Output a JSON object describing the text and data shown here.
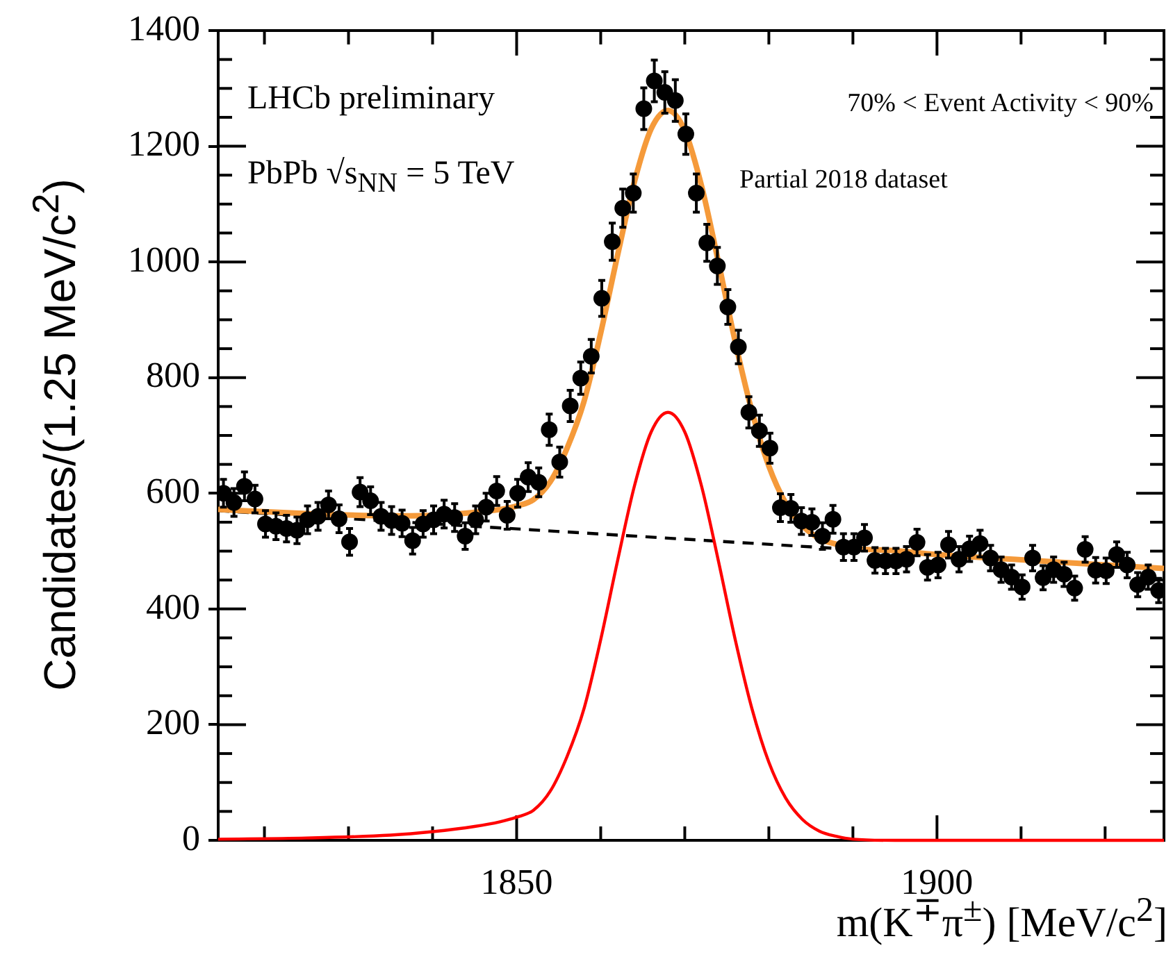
{
  "chart_data": {
    "type": "scatter",
    "xlabel": "m(K$^{∓}$π$^{±}$) [MeV/c$^{2}$]",
    "ylabel": "Candidates/(1.25 MeV/c$^{2}$)",
    "annotations": [
      "LHCb preliminary",
      "PbPb √s$_{NN}$ = 5 TeV",
      "70% < Event Activity < 90%",
      "Partial 2018 dataset"
    ],
    "xlim": [
      1814.5,
      1927
    ],
    "xticks": [
      {
        "value": 1820,
        "label": null
      },
      {
        "value": 1830,
        "label": null
      },
      {
        "value": 1840,
        "label": null
      },
      1850,
      {
        "value": 1860,
        "label": null
      },
      {
        "value": 1870,
        "label": null
      },
      {
        "value": 1880,
        "label": null
      },
      {
        "value": 1890,
        "label": null
      },
      1900,
      {
        "value": 1910,
        "label": null
      },
      {
        "value": 1920,
        "label": null
      }
    ],
    "ylim": [
      0,
      1400
    ],
    "yticks": [
      0,
      {
        "value": 50,
        "label": null
      },
      {
        "value": 100,
        "label": null
      },
      {
        "value": 150,
        "label": null
      },
      200,
      {
        "value": 250,
        "label": null
      },
      {
        "value": 300,
        "label": null
      },
      {
        "value": 350,
        "label": null
      },
      400,
      {
        "value": 450,
        "label": null
      },
      {
        "value": 500,
        "label": null
      },
      {
        "value": 550,
        "label": null
      },
      600,
      {
        "value": 650,
        "label": null
      },
      {
        "value": 700,
        "label": null
      },
      {
        "value": 750,
        "label": null
      },
      800,
      {
        "value": 850,
        "label": null
      },
      {
        "value": 900,
        "label": null
      },
      {
        "value": 950,
        "label": null
      },
      1000,
      {
        "value": 1050,
        "label": null
      },
      {
        "value": 1100,
        "label": null
      },
      {
        "value": 1150,
        "label": null
      },
      1200,
      {
        "value": 1250,
        "label": null
      },
      {
        "value": 1300,
        "label": null
      },
      {
        "value": 1350,
        "label": null
      },
      1400
    ],
    "series": [
      {
        "type": "line",
        "color": "#000000",
        "line_style": "dashed",
        "marker": "none",
        "x": [
          1814.5,
          1927
        ],
        "values": [
          570,
          470
        ]
      },
      {
        "type": "line",
        "color": "#ff0000",
        "line_style": "solid",
        "marker": "none",
        "x": [
          1814.5,
          1825,
          1835,
          1840,
          1845,
          1848,
          1850,
          1852,
          1854,
          1856,
          1858,
          1860,
          1862,
          1864,
          1866,
          1868,
          1870,
          1872,
          1874,
          1876,
          1878,
          1880,
          1882,
          1884,
          1886,
          1888,
          1890,
          1895,
          1927
        ],
        "values": [
          2,
          4,
          9,
          15,
          24,
          32,
          40,
          52,
          85,
          145,
          227,
          347,
          483,
          612,
          706,
          740,
          706,
          612,
          483,
          347,
          227,
          135,
          73,
          36,
          16,
          7,
          2,
          0,
          0
        ]
      },
      {
        "type": "line",
        "color": "#f59a3a",
        "line_style": "solid",
        "marker": "none",
        "x": [
          1814.5,
          1825,
          1835,
          1840,
          1845,
          1848,
          1850,
          1852,
          1854,
          1856,
          1858,
          1860,
          1862,
          1864,
          1866,
          1868,
          1870,
          1872,
          1874,
          1876,
          1878,
          1880,
          1882,
          1884,
          1886,
          1888,
          1890,
          1895,
          1900,
          1910,
          1927
        ],
        "values": [
          572,
          565,
          561,
          562,
          567,
          572,
          578,
          589,
          620,
          678,
          758,
          877,
          1011,
          1138,
          1230,
          1262,
          1227,
          1131,
          1000,
          862,
          741,
          647,
          583,
          544,
          522,
          512,
          505,
          501,
          494,
          485,
          470
        ]
      },
      {
        "type": "scatter",
        "color": "#000000",
        "marker": "circle",
        "x": [
          1815.125,
          1816.375,
          1817.625,
          1818.875,
          1820.125,
          1821.375,
          1822.625,
          1823.875,
          1825.125,
          1826.375,
          1827.625,
          1828.875,
          1830.125,
          1831.375,
          1832.625,
          1833.875,
          1835.125,
          1836.375,
          1837.625,
          1838.875,
          1840.125,
          1841.375,
          1842.625,
          1843.875,
          1845.125,
          1846.375,
          1847.625,
          1848.875,
          1850.125,
          1851.375,
          1852.625,
          1853.875,
          1855.125,
          1856.375,
          1857.625,
          1858.875,
          1860.125,
          1861.375,
          1862.625,
          1863.875,
          1865.125,
          1866.375,
          1867.625,
          1868.875,
          1870.125,
          1871.375,
          1872.625,
          1873.875,
          1875.125,
          1876.375,
          1877.625,
          1878.875,
          1880.125,
          1881.375,
          1882.625,
          1883.875,
          1885.125,
          1886.375,
          1887.625,
          1888.875,
          1890.125,
          1891.375,
          1892.625,
          1893.875,
          1895.125,
          1896.375,
          1897.625,
          1898.875,
          1900.125,
          1901.375,
          1902.625,
          1903.875,
          1905.125,
          1906.375,
          1907.625,
          1908.875,
          1910.125,
          1911.375,
          1912.625,
          1913.875,
          1915.125,
          1916.375,
          1917.625,
          1918.875,
          1920.125,
          1921.375,
          1922.625,
          1923.875,
          1925.125,
          1926.375
        ],
        "values": [
          600,
          584,
          612,
          590,
          547,
          543,
          539,
          536,
          554,
          560,
          580,
          556,
          516,
          602,
          587,
          560,
          553,
          548,
          518,
          547,
          554,
          564,
          558,
          526,
          554,
          576,
          604,
          562,
          600,
          628,
          619,
          710,
          654,
          751,
          799,
          837,
          937,
          1035,
          1093,
          1119,
          1265,
          1313,
          1293,
          1279,
          1221,
          1119,
          1033,
          993,
          922,
          853,
          740,
          708,
          678,
          575,
          574,
          552,
          550,
          526,
          555,
          507,
          507,
          523,
          484,
          483,
          483,
          486,
          515,
          472,
          476,
          511,
          486,
          504,
          513,
          488,
          468,
          455,
          438,
          488,
          454,
          468,
          460,
          436,
          503,
          467,
          466,
          494,
          476,
          442,
          455,
          432
        ],
        "errors": [
          24,
          24,
          25,
          24,
          23,
          23,
          23,
          23,
          24,
          24,
          24,
          24,
          23,
          25,
          24,
          24,
          24,
          23,
          23,
          23,
          24,
          24,
          24,
          23,
          24,
          24,
          25,
          24,
          24,
          25,
          25,
          27,
          26,
          27,
          28,
          29,
          31,
          32,
          33,
          33,
          36,
          36,
          36,
          36,
          35,
          33,
          32,
          32,
          30,
          29,
          27,
          27,
          26,
          24,
          24,
          23,
          23,
          23,
          24,
          23,
          23,
          23,
          22,
          22,
          22,
          22,
          23,
          22,
          22,
          23,
          22,
          22,
          23,
          22,
          22,
          21,
          21,
          22,
          21,
          22,
          21,
          21,
          22,
          22,
          22,
          22,
          22,
          21,
          21,
          21
        ]
      }
    ]
  }
}
